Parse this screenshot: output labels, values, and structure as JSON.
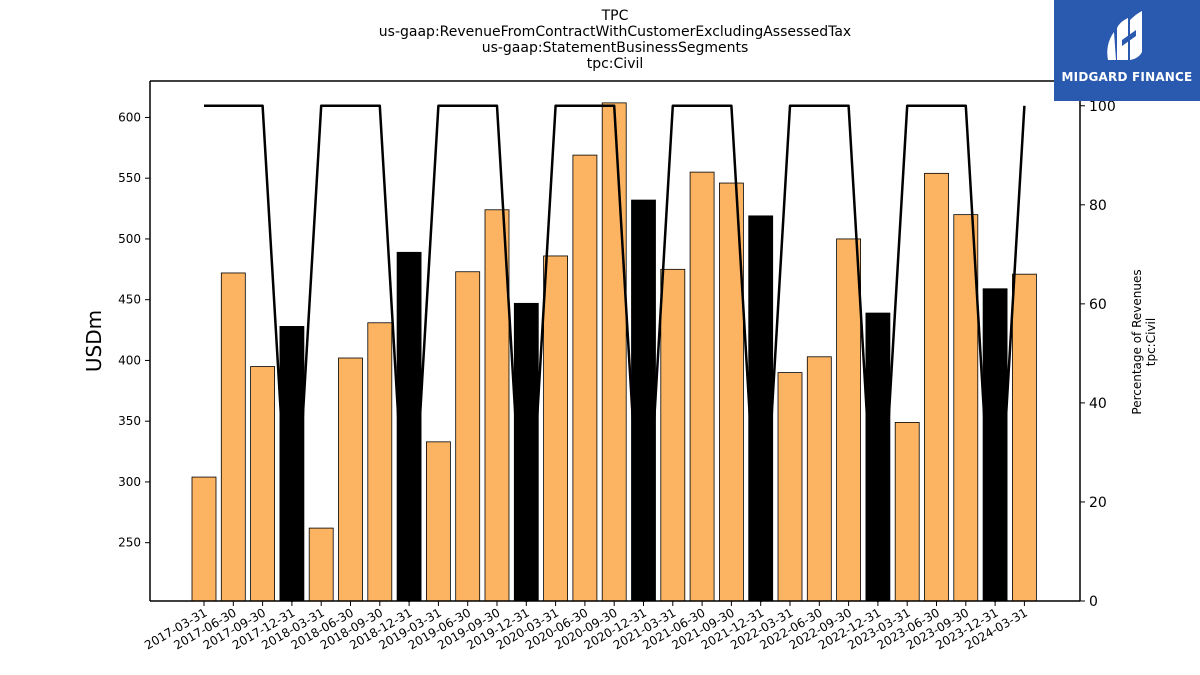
{
  "title_lines": [
    "TPC",
    "us-gaap:RevenueFromContractWithCustomerExcludingAssessedTax",
    "us-gaap:StatementBusinessSegments",
    "tpc:Civil"
  ],
  "logo": {
    "text": "MIDGARD FINANCE",
    "background": "#2a5ab0"
  },
  "chart_data": {
    "type": "bar",
    "categories": [
      "2017-03-31",
      "2017-06-30",
      "2017-09-30",
      "2017-12-31",
      "2018-03-31",
      "2018-06-30",
      "2018-09-30",
      "2018-12-31",
      "2019-03-31",
      "2019-06-30",
      "2019-09-30",
      "2019-12-31",
      "2020-03-31",
      "2020-06-30",
      "2020-09-30",
      "2020-12-31",
      "2021-03-31",
      "2021-06-30",
      "2021-09-30",
      "2021-12-31",
      "2022-03-31",
      "2022-06-30",
      "2022-09-30",
      "2022-12-31",
      "2023-03-31",
      "2023-06-30",
      "2023-09-30",
      "2023-12-31",
      "2024-03-31"
    ],
    "values": [
      304,
      472,
      395,
      428,
      262,
      402,
      431,
      489,
      333,
      473,
      524,
      447,
      486,
      569,
      612,
      532,
      475,
      555,
      546,
      519,
      390,
      403,
      500,
      439,
      349,
      554,
      520,
      459,
      471
    ],
    "bar_colors": [
      "#fdb462",
      "#fdb462",
      "#fdb462",
      "#000000",
      "#fdb462",
      "#fdb462",
      "#fdb462",
      "#000000",
      "#fdb462",
      "#fdb462",
      "#fdb462",
      "#000000",
      "#fdb462",
      "#fdb462",
      "#fdb462",
      "#000000",
      "#fdb462",
      "#fdb462",
      "#fdb462",
      "#000000",
      "#fdb462",
      "#fdb462",
      "#fdb462",
      "#000000",
      "#fdb462",
      "#fdb462",
      "#fdb462",
      "#000000",
      "#fdb462"
    ],
    "ylabel": "USDm",
    "ylim": [
      202,
      630
    ],
    "yticks": [
      250,
      300,
      350,
      400,
      450,
      500,
      550,
      600
    ],
    "line": {
      "values": [
        100,
        100,
        100,
        0,
        100,
        100,
        100,
        0,
        100,
        100,
        100,
        0,
        100,
        100,
        100,
        0,
        100,
        100,
        100,
        0,
        100,
        100,
        100,
        0,
        100,
        100,
        100,
        0,
        100
      ],
      "color": "#000000"
    },
    "y2label_lines": [
      "Percentage of Revenues",
      "tpc:Civil"
    ],
    "y2lim": [
      0,
      105
    ],
    "y2ticks": [
      0,
      20,
      40,
      60,
      80,
      100
    ],
    "grid": false,
    "legend": "none"
  }
}
